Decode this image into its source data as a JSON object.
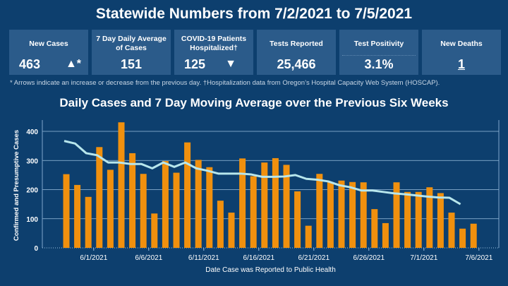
{
  "header": {
    "title": "Statewide Numbers from 7/2/2021 to 7/5/2021"
  },
  "cards": [
    {
      "label": "New Cases",
      "value": "463",
      "arrow": "▲*"
    },
    {
      "label": "7 Day Daily Average of Cases",
      "value": "151"
    },
    {
      "label": "COVID-19 Patients Hospitalized†",
      "value": "125",
      "arrow": "▼"
    },
    {
      "label": "Tests Reported",
      "value": "25,466"
    },
    {
      "label": "Test Positivity",
      "value": "3.1%"
    },
    {
      "label": "New Deaths",
      "value": "1"
    }
  ],
  "footnote": "* Arrows indicate an increase or decrease from the previous day. †Hospitalization data from Oregon’s Hospital Capacity Web System (HOSCAP).",
  "colors": {
    "background": "#0d3f6e",
    "card": "#2b5b8a",
    "bar": "#f0900e",
    "line": "#b7e6ec"
  },
  "chart_data": {
    "type": "bar",
    "title": "Daily Cases and 7 Day Moving Average over the Previous Six Weeks",
    "xlabel": "Date Case was Reported to Public Health",
    "ylabel": "Confirmed and Presumptive Cases",
    "ylim": [
      0,
      440
    ],
    "yticks": [
      0,
      100,
      200,
      300,
      400
    ],
    "xtick_labels": [
      "6/1/2021",
      "6/6/2021",
      "6/11/2021",
      "6/16/2021",
      "6/21/2021",
      "6/26/2021",
      "7/1/2021",
      "7/6/2021"
    ],
    "start_date": "5/29/2021",
    "series": [
      {
        "name": "Daily Cases",
        "type": "bar",
        "values": [
          253,
          216,
          175,
          346,
          268,
          431,
          325,
          254,
          118,
          298,
          258,
          362,
          302,
          277,
          162,
          121,
          307,
          246,
          293,
          308,
          285,
          194,
          76,
          254,
          226,
          231,
          226,
          225,
          133,
          85,
          225,
          192,
          192,
          208,
          188,
          121,
          66,
          83
        ]
      },
      {
        "name": "7 Day Moving Average",
        "type": "line",
        "values": [
          367,
          358,
          325,
          318,
          293,
          293,
          288,
          288,
          273,
          293,
          278,
          293,
          273,
          265,
          255,
          255,
          255,
          252,
          244,
          244,
          245,
          250,
          237,
          234,
          228,
          215,
          208,
          197,
          197,
          192,
          187,
          184,
          180,
          176,
          173,
          172,
          150,
          null
        ]
      }
    ]
  }
}
